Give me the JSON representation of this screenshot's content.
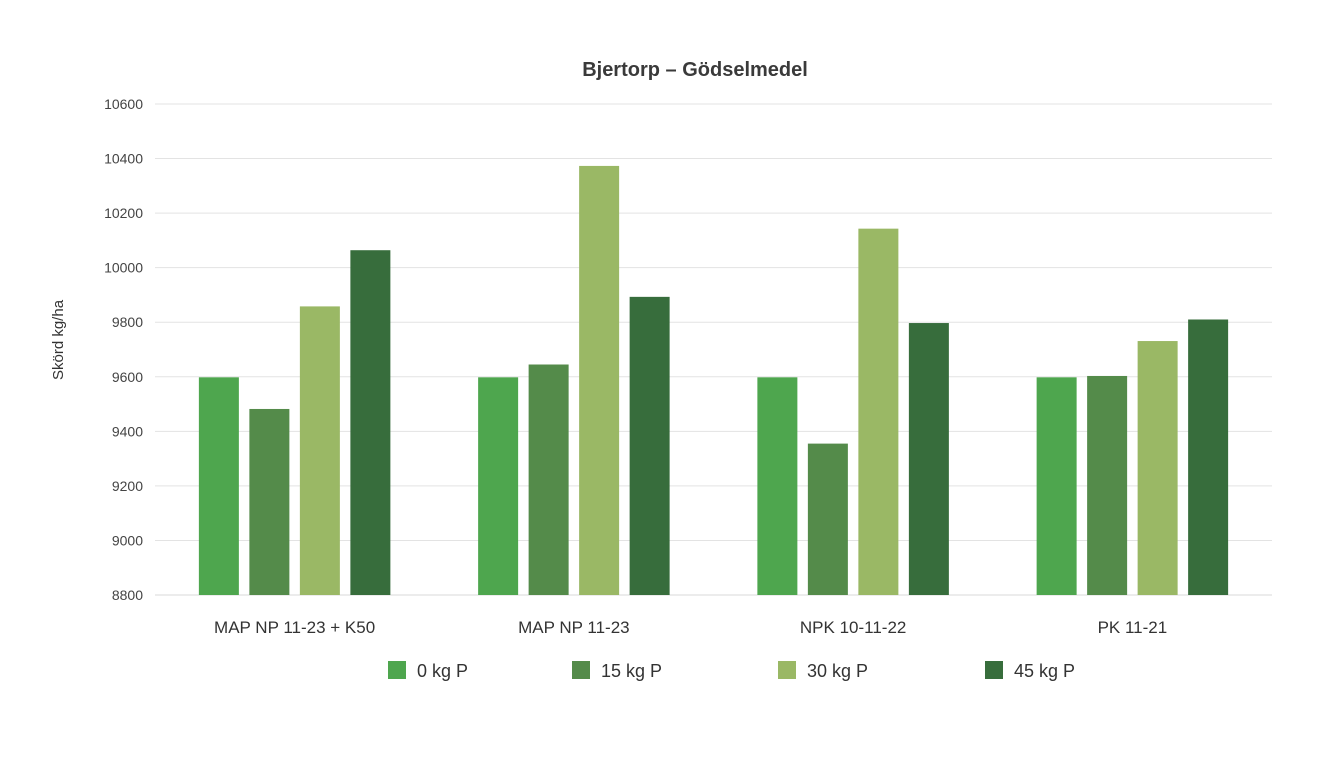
{
  "chart_data": {
    "type": "bar",
    "title": "Bjertorp – Gödselmedel",
    "xlabel": "",
    "ylabel": "Skörd kg/ha",
    "ylim": [
      8800,
      10600
    ],
    "yticks": [
      8800,
      9000,
      9200,
      9400,
      9600,
      9800,
      10000,
      10200,
      10400,
      10600
    ],
    "categories": [
      "MAP NP 11-23 + K50",
      "MAP NP 11-23",
      "NPK 10-11-22",
      "PK 11-21"
    ],
    "series": [
      {
        "name": "0 kg P",
        "color": "#4ea64e",
        "values": [
          9598,
          9598,
          9598,
          9598
        ]
      },
      {
        "name": "15 kg P",
        "color": "#548b4a",
        "values": [
          9482,
          9645,
          9355,
          9603
        ]
      },
      {
        "name": "30 kg P",
        "color": "#9ab865",
        "values": [
          9858,
          10373,
          10143,
          9731
        ]
      },
      {
        "name": "45 kg P",
        "color": "#376d3c",
        "values": [
          10064,
          9893,
          9797,
          9810
        ]
      }
    ],
    "grid": true,
    "legend_position": "bottom"
  }
}
